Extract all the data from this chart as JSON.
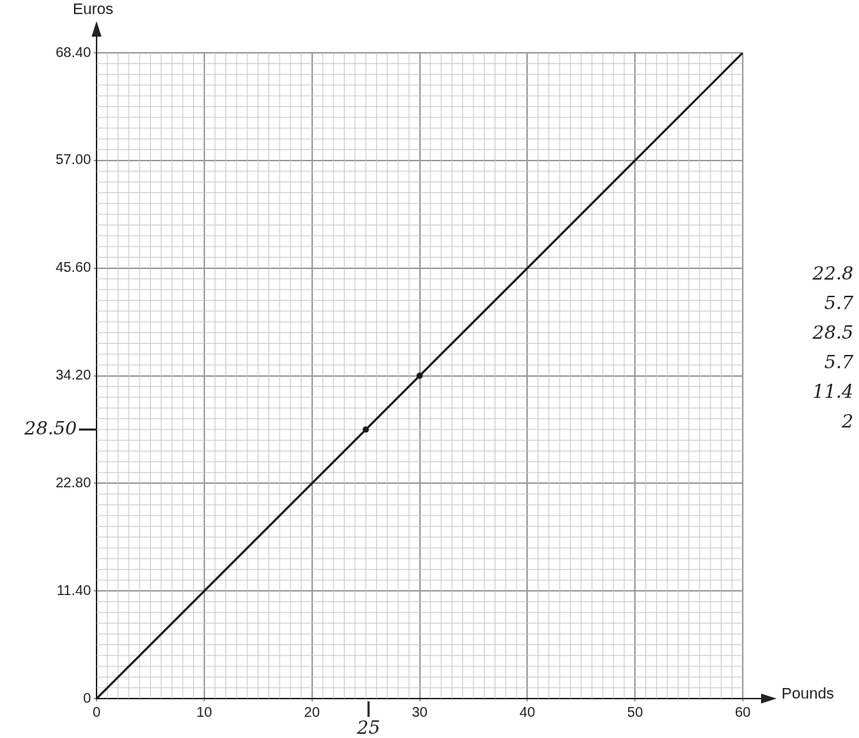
{
  "chart_data": {
    "type": "line",
    "xlabel": "Pounds",
    "ylabel": "Euros",
    "series": [
      {
        "type": "line",
        "color": "#1a1a1a",
        "x": [
          0,
          60
        ],
        "values": [
          0,
          68.4
        ]
      },
      {
        "type": "scatter",
        "color": "#1a1a1a",
        "x": [
          25,
          30
        ],
        "values": [
          28.5,
          34.2
        ]
      }
    ],
    "xlim": [
      0,
      60
    ],
    "xticks": [
      0,
      10,
      20,
      30,
      40,
      50,
      60
    ],
    "ylim": [
      0,
      68.4
    ],
    "yticks": [
      0,
      {
        "value": 11.4,
        "label": "11.40"
      },
      {
        "value": 22.8,
        "label": "22.80"
      },
      {
        "value": 34.2,
        "label": "34.20"
      },
      {
        "value": 45.6,
        "label": "45.60"
      },
      {
        "value": 57,
        "label": "57.00"
      },
      {
        "value": 68.4,
        "label": "68.40"
      }
    ],
    "grid": true,
    "legend": false,
    "annotations": [
      "28.50",
      "25",
      "22.8",
      "5.7",
      "28.5",
      "5.7",
      "11.4",
      "2"
    ]
  }
}
